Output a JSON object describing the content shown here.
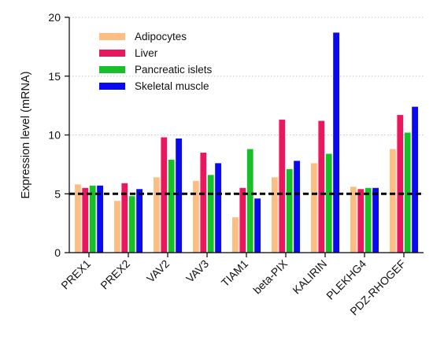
{
  "chart_data": {
    "type": "bar",
    "ylabel": "Expression level (mRNA)",
    "ylim": [
      0,
      20
    ],
    "yticks": [
      0,
      5,
      10,
      15,
      20
    ],
    "grid": "horizontal dotted",
    "legend_position": "top-left",
    "threshold": 5,
    "categories": [
      "PREX1",
      "PREX2",
      "VAV2",
      "VAV3",
      "TIAM1",
      "beta-PIX",
      "KALIRIN",
      "PLEKHG4",
      "PDZ-RHOGEF"
    ],
    "series": [
      {
        "name": "Adipocytes",
        "color": "#FDBE83",
        "values": [
          5.8,
          4.4,
          6.4,
          6.1,
          3.0,
          6.4,
          7.6,
          5.6,
          8.8
        ]
      },
      {
        "name": "Liver",
        "color": "#E8185F",
        "values": [
          5.5,
          5.9,
          9.8,
          8.5,
          5.5,
          11.3,
          11.2,
          5.4,
          11.7
        ]
      },
      {
        "name": "Pancreatic islets",
        "color": "#17C028",
        "values": [
          5.7,
          4.8,
          7.9,
          6.6,
          8.8,
          7.1,
          8.4,
          5.5,
          10.2
        ]
      },
      {
        "name": "Skeletal muscle",
        "color": "#0A0AF0",
        "values": [
          5.7,
          5.4,
          9.7,
          7.6,
          4.6,
          7.8,
          18.7,
          5.5,
          12.4
        ]
      }
    ]
  }
}
